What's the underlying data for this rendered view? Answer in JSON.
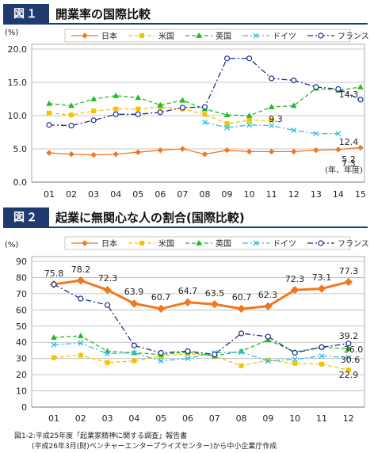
{
  "fig1": {
    "badge": "図１",
    "title": "開業率の国際比較",
    "chart_data": {
      "type": "line",
      "ylabel": "(%)",
      "xlabel": "(年、年度)",
      "ylim": [
        0,
        20
      ],
      "yticks": [
        "0.0",
        "5.0",
        "10.0",
        "15.0",
        "20.0"
      ],
      "categories": [
        "01",
        "02",
        "03",
        "04",
        "05",
        "06",
        "07",
        "08",
        "09",
        "10",
        "11",
        "12",
        "13",
        "14",
        "15"
      ],
      "grid": true,
      "legend": "top",
      "series": [
        {
          "name": "日本",
          "color": "#f07820",
          "marker": "diamond",
          "dash": "solid",
          "values": [
            4.4,
            4.2,
            4.1,
            4.2,
            4.5,
            4.8,
            5.0,
            4.2,
            4.8,
            4.6,
            4.6,
            4.6,
            4.8,
            4.9,
            5.2
          ]
        },
        {
          "name": "米国",
          "color": "#f5c400",
          "marker": "square",
          "dash": "dash",
          "values": [
            10.4,
            10.1,
            10.7,
            11.0,
            11.0,
            11.3,
            11.0,
            10.2,
            8.8,
            9.3,
            9.3,
            null,
            null,
            null,
            null
          ]
        },
        {
          "name": "英国",
          "color": "#22bb22",
          "marker": "triangle",
          "dash": "dash",
          "values": [
            11.8,
            11.5,
            12.5,
            13.0,
            12.7,
            11.6,
            12.3,
            11.0,
            10.1,
            10.0,
            11.3,
            11.5,
            14.1,
            13.8,
            14.3
          ]
        },
        {
          "name": "ドイツ",
          "color": "#33bde8",
          "marker": "x",
          "dash": "dashdot",
          "values": [
            null,
            null,
            null,
            null,
            null,
            null,
            null,
            9.0,
            8.2,
            8.6,
            8.5,
            7.8,
            7.3,
            7.3,
            null
          ]
        },
        {
          "name": "フランス",
          "color": "#1c2e8c",
          "marker": "circle",
          "dash": "dashdot",
          "values": [
            8.6,
            8.5,
            9.3,
            10.2,
            10.2,
            10.5,
            11.2,
            11.3,
            18.6,
            18.6,
            15.6,
            15.3,
            14.3,
            14.0,
            12.4
          ]
        }
      ],
      "labels": [
        "9.3",
        "14.3",
        "12.4",
        "7.3",
        "5.2"
      ]
    }
  },
  "fig2": {
    "badge": "図２",
    "title": "起業に無関心な人の割合(国際比較)",
    "chart_data": {
      "type": "line",
      "ylabel": "(%)",
      "xlabel": "(年)",
      "ylim": [
        0,
        90
      ],
      "yticks": [
        "0",
        "10",
        "20",
        "30",
        "40",
        "50",
        "60",
        "70",
        "80",
        "90"
      ],
      "categories": [
        "01",
        "02",
        "03",
        "04",
        "05",
        "06",
        "07",
        "08",
        "09",
        "10",
        "11",
        "12"
      ],
      "grid": true,
      "legend": "top",
      "series": [
        {
          "name": "日本",
          "color": "#f07820",
          "marker": "diamond",
          "dash": "solid",
          "values": [
            75.8,
            78.2,
            72.3,
            63.9,
            60.7,
            64.7,
            63.5,
            60.7,
            62.3,
            72.3,
            73.1,
            77.3
          ]
        },
        {
          "name": "米国",
          "color": "#f5c400",
          "marker": "square",
          "dash": "dash",
          "values": [
            30.5,
            32.0,
            27.5,
            28.5,
            31.5,
            33.0,
            31.5,
            25.5,
            29.0,
            27.0,
            26.5,
            22.9
          ]
        },
        {
          "name": "英国",
          "color": "#22bb22",
          "marker": "triangle",
          "dash": "dash",
          "values": [
            43.0,
            44.0,
            34.5,
            33.5,
            32.5,
            34.0,
            31.5,
            34.5,
            41.5,
            34.0,
            37.0,
            36.0
          ]
        },
        {
          "name": "ドイツ",
          "color": "#33bde8",
          "marker": "x",
          "dash": "dashdot",
          "values": [
            38.5,
            39.5,
            33.0,
            33.5,
            28.5,
            30.0,
            33.5,
            34.0,
            28.5,
            29.5,
            31.5,
            30.6
          ]
        },
        {
          "name": "フランス",
          "color": "#1c2e8c",
          "marker": "circle",
          "dash": "dashdot",
          "values": [
            75.8,
            67.0,
            63.0,
            38.0,
            33.5,
            34.5,
            32.5,
            45.5,
            43.5,
            33.5,
            37.0,
            39.2
          ]
        }
      ],
      "labels": [
        "75.8",
        "78.2",
        "72.3",
        "63.9",
        "60.7",
        "64.7",
        "63.5",
        "60.7",
        "62.3",
        "72.3",
        "73.1",
        "77.3",
        "39.2",
        "36.0",
        "30.6",
        "22.9"
      ]
    },
    "source": [
      "図1-2:平成25年度「起業家精神に関する調査」報告書",
      "(平成26年3月(財)ベンチャーエンタープライズセンター)から中小企業庁作成"
    ]
  }
}
